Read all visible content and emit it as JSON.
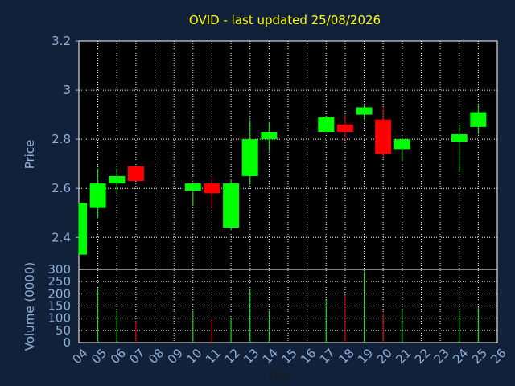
{
  "chart_data": {
    "type": "candlestick",
    "title": "OVID - last updated 25/08/2026",
    "xlabel": "Day",
    "price_ylabel": "Price",
    "volume_ylabel": "Volume (0000)",
    "x_ticks": [
      "04",
      "05",
      "06",
      "07",
      "08",
      "09",
      "10",
      "11",
      "12",
      "13",
      "14",
      "15",
      "16",
      "17",
      "18",
      "19",
      "20",
      "21",
      "22",
      "23",
      "24",
      "25",
      "26"
    ],
    "price_ylim": [
      2.27,
      3.2
    ],
    "price_ticks": [
      "2.4",
      "2.6",
      "2.8",
      "3",
      "3.2"
    ],
    "volume_ylim": [
      0,
      300
    ],
    "volume_ticks": [
      "0",
      "50",
      "100",
      "150",
      "200",
      "250",
      "300"
    ],
    "up_color": "#00ff00",
    "down_color": "#ff0000",
    "bg_color": "#12213a",
    "plot_color": "#000000",
    "grid": true,
    "candles": [
      {
        "day": "04",
        "open": 2.33,
        "close": 2.54,
        "high": 2.54,
        "low": 2.33,
        "volume": 0
      },
      {
        "day": "05",
        "open": 2.52,
        "close": 2.62,
        "high": 2.68,
        "low": 2.48,
        "volume": 225
      },
      {
        "day": "06",
        "open": 2.62,
        "close": 2.65,
        "high": 2.68,
        "low": 2.58,
        "volume": 130
      },
      {
        "day": "07",
        "open": 2.69,
        "close": 2.63,
        "high": 2.69,
        "low": 2.63,
        "volume": 90
      },
      {
        "day": "10",
        "open": 2.59,
        "close": 2.62,
        "high": 2.62,
        "low": 2.53,
        "volume": 125
      },
      {
        "day": "11",
        "open": 2.62,
        "close": 2.58,
        "high": 2.65,
        "low": 2.52,
        "volume": 100
      },
      {
        "day": "12",
        "open": 2.44,
        "close": 2.62,
        "high": 2.64,
        "low": 2.43,
        "volume": 100
      },
      {
        "day": "13",
        "open": 2.65,
        "close": 2.8,
        "high": 2.88,
        "low": 2.62,
        "volume": 220
      },
      {
        "day": "14",
        "open": 2.8,
        "close": 2.83,
        "high": 2.87,
        "low": 2.75,
        "volume": 130
      },
      {
        "day": "17",
        "open": 2.83,
        "close": 2.89,
        "high": 2.89,
        "low": 2.83,
        "volume": 175
      },
      {
        "day": "18",
        "open": 2.86,
        "close": 2.83,
        "high": 2.9,
        "low": 2.8,
        "volume": 195
      },
      {
        "day": "19",
        "open": 2.9,
        "close": 2.93,
        "high": 2.94,
        "low": 2.88,
        "volume": 290
      },
      {
        "day": "20",
        "open": 2.88,
        "close": 2.74,
        "high": 2.93,
        "low": 2.72,
        "volume": 120
      },
      {
        "day": "21",
        "open": 2.76,
        "close": 2.8,
        "high": 2.8,
        "low": 2.71,
        "volume": 135
      },
      {
        "day": "24",
        "open": 2.79,
        "close": 2.82,
        "high": 2.86,
        "low": 2.67,
        "volume": 130
      },
      {
        "day": "25",
        "open": 2.85,
        "close": 2.91,
        "high": 2.94,
        "low": 2.82,
        "volume": 145
      }
    ]
  }
}
